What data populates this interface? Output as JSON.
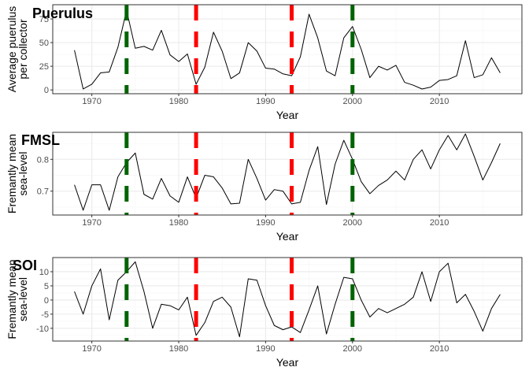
{
  "colors": {
    "line": "#000000",
    "grid_major": "#ebebeb",
    "grid_minor": "#f5f5f5",
    "panel_border": "#333333",
    "red_marker": "#ff0000",
    "green_marker": "#006400",
    "background": "#ffffff"
  },
  "chart_data": [
    {
      "type": "line",
      "title": "Puerulus",
      "xlabel": "Year",
      "ylabel": [
        "Average puerulus",
        "per collector"
      ],
      "xlim": [
        1965.5,
        2019.5
      ],
      "ylim": [
        -4,
        90
      ],
      "x_ticks": [
        1970,
        1980,
        1990,
        2000,
        2010
      ],
      "y_ticks": [
        0,
        25,
        50,
        75
      ],
      "grid": true,
      "vlines": [
        {
          "x": 1974,
          "color": "green",
          "style": "dashed"
        },
        {
          "x": 1982,
          "color": "red",
          "style": "dashed"
        },
        {
          "x": 1993,
          "color": "red",
          "style": "dashed"
        },
        {
          "x": 2000,
          "color": "green",
          "style": "dashed"
        }
      ],
      "x": [
        1968,
        1969,
        1970,
        1971,
        1972,
        1973,
        1974,
        1975,
        1976,
        1977,
        1978,
        1979,
        1980,
        1981,
        1982,
        1983,
        1984,
        1985,
        1986,
        1987,
        1988,
        1989,
        1990,
        1991,
        1992,
        1993,
        1994,
        1995,
        1996,
        1997,
        1998,
        1999,
        2000,
        2001,
        2002,
        2003,
        2004,
        2005,
        2006,
        2007,
        2008,
        2009,
        2010,
        2011,
        2012,
        2013,
        2014,
        2015,
        2016,
        2017
      ],
      "series": [
        {
          "values": [
            42,
            1,
            6,
            18,
            19,
            45,
            84,
            44,
            46,
            42,
            63,
            37,
            30,
            38,
            6,
            24,
            61,
            41,
            12,
            18,
            50,
            41,
            23,
            22,
            17,
            15,
            35,
            80,
            55,
            20,
            15,
            55,
            67,
            43,
            13,
            25,
            21,
            26,
            8,
            5,
            1,
            3,
            10,
            11,
            15,
            52,
            13,
            16,
            34,
            18
          ]
        }
      ]
    },
    {
      "type": "line",
      "title": "FMSL",
      "xlabel": "Year",
      "ylabel": [
        "Fremantly mean",
        "sea-level"
      ],
      "xlim": [
        1965.5,
        2019.5
      ],
      "ylim": [
        0.625,
        0.885
      ],
      "x_ticks": [
        1970,
        1980,
        1990,
        2000,
        2010
      ],
      "y_ticks": [
        0.7,
        0.8
      ],
      "grid": true,
      "vlines": [
        {
          "x": 1974,
          "color": "green",
          "style": "dashed"
        },
        {
          "x": 1982,
          "color": "red",
          "style": "dashed"
        },
        {
          "x": 1993,
          "color": "red",
          "style": "dashed"
        },
        {
          "x": 2000,
          "color": "green",
          "style": "dashed"
        }
      ],
      "x": [
        1968,
        1969,
        1970,
        1971,
        1972,
        1973,
        1974,
        1975,
        1976,
        1977,
        1978,
        1979,
        1980,
        1981,
        1982,
        1983,
        1984,
        1985,
        1986,
        1987,
        1988,
        1989,
        1990,
        1991,
        1992,
        1993,
        1994,
        1995,
        1996,
        1997,
        1998,
        1999,
        2000,
        2001,
        2002,
        2003,
        2004,
        2005,
        2006,
        2007,
        2008,
        2009,
        2010,
        2011,
        2012,
        2013,
        2014,
        2015,
        2016,
        2017
      ],
      "series": [
        {
          "values": [
            0.72,
            0.64,
            0.72,
            0.72,
            0.64,
            0.745,
            0.79,
            0.82,
            0.69,
            0.675,
            0.74,
            0.685,
            0.665,
            0.745,
            0.678,
            0.75,
            0.745,
            0.71,
            0.66,
            0.662,
            0.8,
            0.74,
            0.672,
            0.705,
            0.7,
            0.66,
            0.665,
            0.765,
            0.84,
            0.658,
            0.785,
            0.86,
            0.8,
            0.73,
            0.692,
            0.718,
            0.735,
            0.763,
            0.735,
            0.8,
            0.83,
            0.77,
            0.83,
            0.875,
            0.83,
            0.88,
            0.81,
            0.735,
            0.79,
            0.85
          ]
        }
      ]
    },
    {
      "type": "line",
      "title": "SOI",
      "xlabel": "Year",
      "ylabel": [
        "Fremantly mean",
        "sea-level"
      ],
      "xlim": [
        1965.5,
        2019.5
      ],
      "ylim": [
        -14.5,
        15
      ],
      "x_ticks": [
        1970,
        1980,
        1990,
        2000,
        2010
      ],
      "y_ticks": [
        -10,
        -5,
        0,
        5,
        10
      ],
      "grid": true,
      "vlines": [
        {
          "x": 1974,
          "color": "green",
          "style": "dashed"
        },
        {
          "x": 1982,
          "color": "red",
          "style": "dashed"
        },
        {
          "x": 1993,
          "color": "red",
          "style": "dashed"
        },
        {
          "x": 2000,
          "color": "green",
          "style": "dashed"
        }
      ],
      "x": [
        1968,
        1969,
        1970,
        1971,
        1972,
        1973,
        1974,
        1975,
        1976,
        1977,
        1978,
        1979,
        1980,
        1981,
        1982,
        1983,
        1984,
        1985,
        1986,
        1987,
        1988,
        1989,
        1990,
        1991,
        1992,
        1993,
        1994,
        1995,
        1996,
        1997,
        1998,
        1999,
        2000,
        2001,
        2002,
        2003,
        2004,
        2005,
        2006,
        2007,
        2008,
        2009,
        2010,
        2011,
        2012,
        2013,
        2014,
        2015,
        2016,
        2017
      ],
      "series": [
        {
          "values": [
            3,
            -5,
            5,
            11,
            -7,
            7,
            10,
            13.5,
            3,
            -10,
            -1.5,
            -2,
            -3.5,
            1,
            -12.5,
            -8,
            -0.5,
            1,
            -2.5,
            -13,
            7.5,
            7,
            -2,
            -9,
            -10.5,
            -9.5,
            -11.5,
            -3.5,
            5,
            -12,
            -1.5,
            8,
            7.5,
            0,
            -6,
            -3,
            -4.5,
            -3,
            -1.5,
            1,
            10,
            -0.5,
            10,
            13,
            -1,
            2,
            -4,
            -11,
            -3,
            2
          ]
        }
      ]
    }
  ]
}
